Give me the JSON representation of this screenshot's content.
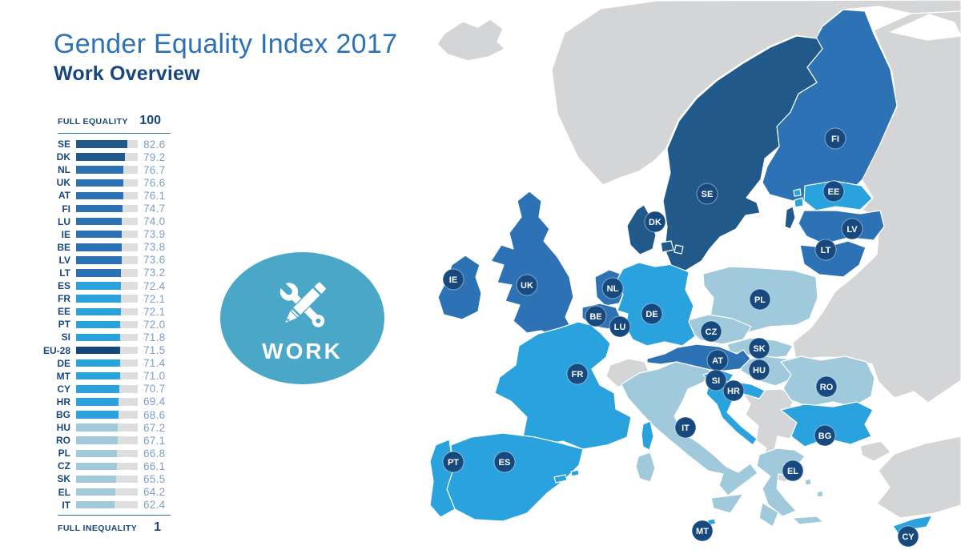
{
  "title": "Gender Equality Index 2017",
  "subtitle": "Work Overview",
  "scale": {
    "top_label": "FULL EQUALITY",
    "top_value": "100",
    "bottom_label": "FULL INEQUALITY",
    "bottom_value": "1"
  },
  "badge": {
    "label": "WORK",
    "icon": "wrench-and-pencil-icon"
  },
  "colors": {
    "dark": "#20598a",
    "medium": "#2d72b5",
    "bright": "#29a2de",
    "pale": "#a0c9dc",
    "eu": "#16477c",
    "noneu_gray": "#d3d5d6",
    "track_gray": "#dcdee0",
    "badge_teal": "#4aa7c8",
    "title_blue": "#2d72b5",
    "heading_navy": "#17477e",
    "value_text": "#7e9dc6",
    "label_circle": "#17497e",
    "sea_white": "#ffffff"
  },
  "chart_data": {
    "type": "bar",
    "title": "Gender Equality Index 2017 — Work Overview",
    "xlabel": "",
    "ylabel": "",
    "xlim": [
      1,
      100
    ],
    "legend": [
      "FULL EQUALITY = 100",
      "FULL INEQUALITY = 1"
    ],
    "rows": [
      {
        "code": "SE",
        "value": "82.6",
        "tier": "dark"
      },
      {
        "code": "DK",
        "value": "79.2",
        "tier": "dark"
      },
      {
        "code": "NL",
        "value": "76.7",
        "tier": "medium"
      },
      {
        "code": "UK",
        "value": "76.6",
        "tier": "medium"
      },
      {
        "code": "AT",
        "value": "76.1",
        "tier": "medium"
      },
      {
        "code": "FI",
        "value": "74.7",
        "tier": "medium"
      },
      {
        "code": "LU",
        "value": "74.0",
        "tier": "medium"
      },
      {
        "code": "IE",
        "value": "73.9",
        "tier": "medium"
      },
      {
        "code": "BE",
        "value": "73.8",
        "tier": "medium"
      },
      {
        "code": "LV",
        "value": "73.6",
        "tier": "medium"
      },
      {
        "code": "LT",
        "value": "73.2",
        "tier": "medium"
      },
      {
        "code": "ES",
        "value": "72.4",
        "tier": "bright"
      },
      {
        "code": "FR",
        "value": "72.1",
        "tier": "bright"
      },
      {
        "code": "EE",
        "value": "72.1",
        "tier": "bright"
      },
      {
        "code": "PT",
        "value": "72.0",
        "tier": "bright"
      },
      {
        "code": "SI",
        "value": "71.8",
        "tier": "bright"
      },
      {
        "code": "EU-28",
        "value": "71.5",
        "tier": "eu"
      },
      {
        "code": "DE",
        "value": "71.4",
        "tier": "bright"
      },
      {
        "code": "MT",
        "value": "71.0",
        "tier": "bright"
      },
      {
        "code": "CY",
        "value": "70.7",
        "tier": "bright"
      },
      {
        "code": "HR",
        "value": "69.4",
        "tier": "bright"
      },
      {
        "code": "BG",
        "value": "68.6",
        "tier": "bright"
      },
      {
        "code": "HU",
        "value": "67.2",
        "tier": "pale"
      },
      {
        "code": "RO",
        "value": "67.1",
        "tier": "pale"
      },
      {
        "code": "PL",
        "value": "66.8",
        "tier": "pale"
      },
      {
        "code": "CZ",
        "value": "66.1",
        "tier": "pale"
      },
      {
        "code": "SK",
        "value": "65.5",
        "tier": "pale"
      },
      {
        "code": "EL",
        "value": "64.2",
        "tier": "pale"
      },
      {
        "code": "IT",
        "value": "62.4",
        "tier": "pale"
      }
    ]
  },
  "map": {
    "labels": [
      "FI",
      "SE",
      "DK",
      "EE",
      "LV",
      "LT",
      "IE",
      "UK",
      "NL",
      "BE",
      "LU",
      "DE",
      "PL",
      "CZ",
      "SK",
      "AT",
      "HU",
      "FR",
      "SI",
      "HR",
      "RO",
      "IT",
      "BG",
      "PT",
      "ES",
      "EL",
      "MT",
      "CY"
    ]
  }
}
